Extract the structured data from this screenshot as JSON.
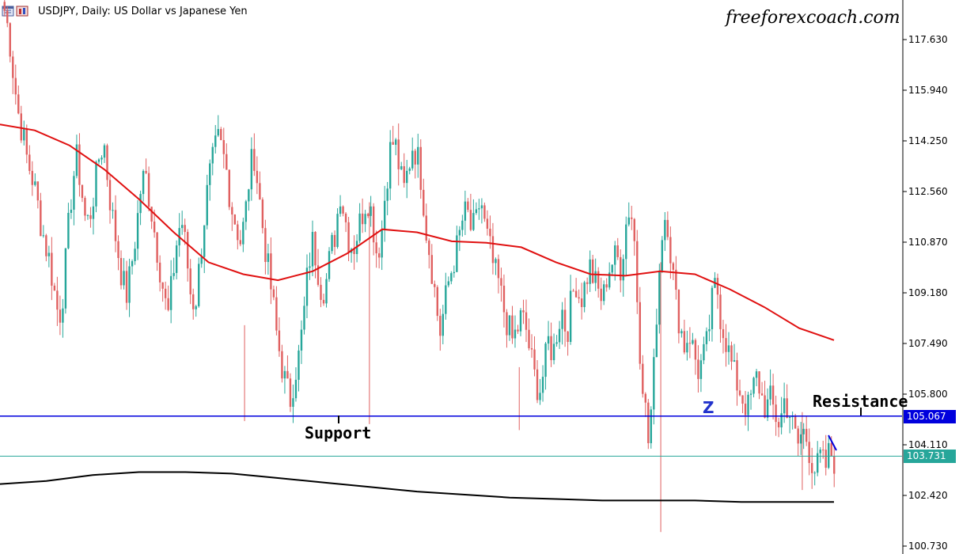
{
  "header": {
    "title": "USDJPY, Daily:  US Dollar vs Japanese Yen",
    "watermark": "freeforexcoach.com"
  },
  "colors": {
    "bull": "#26a69a",
    "bear": "#e06060",
    "ma_long": "#e01010",
    "ma_short": "#000000",
    "support_line": "#0000dd",
    "current_line": "#26a69a",
    "price_tag_blue": "#0000dd",
    "price_tag_teal": "#26a69a"
  },
  "chart_data": {
    "type": "candlestick",
    "symbol": "USDJPY",
    "timeframe": "Daily",
    "ylim": [
      100.0,
      119.0
    ],
    "yticks": [
      "117.630",
      "115.940",
      "114.250",
      "112.560",
      "110.870",
      "109.180",
      "107.490",
      "105.800",
      "104.110",
      "102.420",
      "100.730"
    ],
    "price_levels": [
      {
        "name": "Support / Resistance line",
        "value": 105.067,
        "label": "105.067"
      },
      {
        "name": "Current price",
        "value": 103.731,
        "label": "103.731"
      }
    ],
    "annotations": [
      {
        "text": "Support",
        "near_price": 104.6
      },
      {
        "text": "Resistance",
        "near_price": 105.85
      },
      {
        "text": "Z",
        "near_price": 105.4
      }
    ],
    "close_path": [
      118.6,
      117.8,
      116.4,
      115.2,
      114.5,
      113.6,
      113.1,
      112.4,
      111.5,
      110.8,
      110.2,
      109.2,
      108.3,
      109.3,
      111.2,
      112.9,
      113.7,
      112.6,
      111.4,
      111.9,
      112.8,
      113.9,
      114.1,
      112.6,
      111.5,
      110.6,
      109.6,
      109.1,
      110.1,
      111.2,
      112.6,
      113.2,
      112.3,
      111.3,
      110.3,
      109.3,
      108.3,
      109.6,
      110.9,
      111.7,
      110.6,
      109.2,
      108.7,
      110.1,
      111.6,
      112.9,
      113.6,
      114.3,
      113.9,
      113.2,
      112.1,
      111.5,
      110.9,
      111.6,
      113.1,
      113.9,
      112.6,
      111.3,
      110.1,
      109.1,
      107.8,
      106.9,
      106.1,
      105.6,
      106.5,
      107.1,
      108.4,
      110.1,
      110.9,
      110.1,
      109.2,
      109.6,
      110.6,
      111.2,
      112.6,
      111.8,
      110.9,
      110.7,
      111.3,
      111.9,
      112.4,
      111.8,
      110.6,
      110.9,
      112.6,
      113.9,
      114.3,
      113.4,
      112.5,
      113.3,
      114.1,
      113.8,
      112.9,
      111.3,
      110.3,
      109.1,
      107.8,
      108.7,
      109.6,
      110.2,
      110.8,
      111.6,
      111.9,
      111.2,
      111.5,
      112.4,
      111.3,
      110.7,
      109.9,
      109.5,
      108.7,
      108.1,
      107.6,
      107.9,
      108.4,
      108.0,
      107.1,
      106.3,
      105.9,
      106.6,
      107.6,
      107.1,
      108.1,
      108.6,
      107.8,
      108.9,
      109.6,
      108.9,
      109.4,
      110.1,
      109.6,
      109.2,
      108.9,
      109.9,
      110.2,
      110.4,
      110.0,
      111.4,
      112.2,
      110.8,
      107.6,
      105.9,
      104.2,
      105.9,
      109.1,
      111.2,
      112.0,
      110.4,
      109.0,
      108.1,
      107.4,
      107.9,
      107.2,
      106.6,
      106.9,
      107.5,
      108.8,
      109.6,
      108.3,
      107.7,
      107.0,
      106.4,
      106.0,
      105.6,
      105.3,
      105.9,
      106.4,
      105.7,
      105.3,
      105.6,
      105.1,
      104.8,
      105.6,
      105.3,
      104.6,
      104.1,
      104.6,
      104.3,
      103.6,
      103.2,
      103.7,
      103.3,
      103.9,
      103.6
    ]
  },
  "indicators": {
    "ma_long_path": [
      114.8,
      114.6,
      114.1,
      113.3,
      112.3,
      111.2,
      110.2,
      109.8,
      109.6,
      109.9,
      110.5,
      111.3,
      111.2,
      110.9,
      110.85,
      110.7,
      110.2,
      109.8,
      109.75,
      109.9,
      109.8,
      109.3,
      108.7,
      108.0,
      107.6
    ],
    "ma_short_path": [
      102.8,
      102.9,
      103.1,
      103.2,
      103.2,
      103.15,
      103.0,
      102.85,
      102.7,
      102.55,
      102.45,
      102.35,
      102.3,
      102.25,
      102.25,
      102.25,
      102.2,
      102.2,
      102.2
    ]
  }
}
